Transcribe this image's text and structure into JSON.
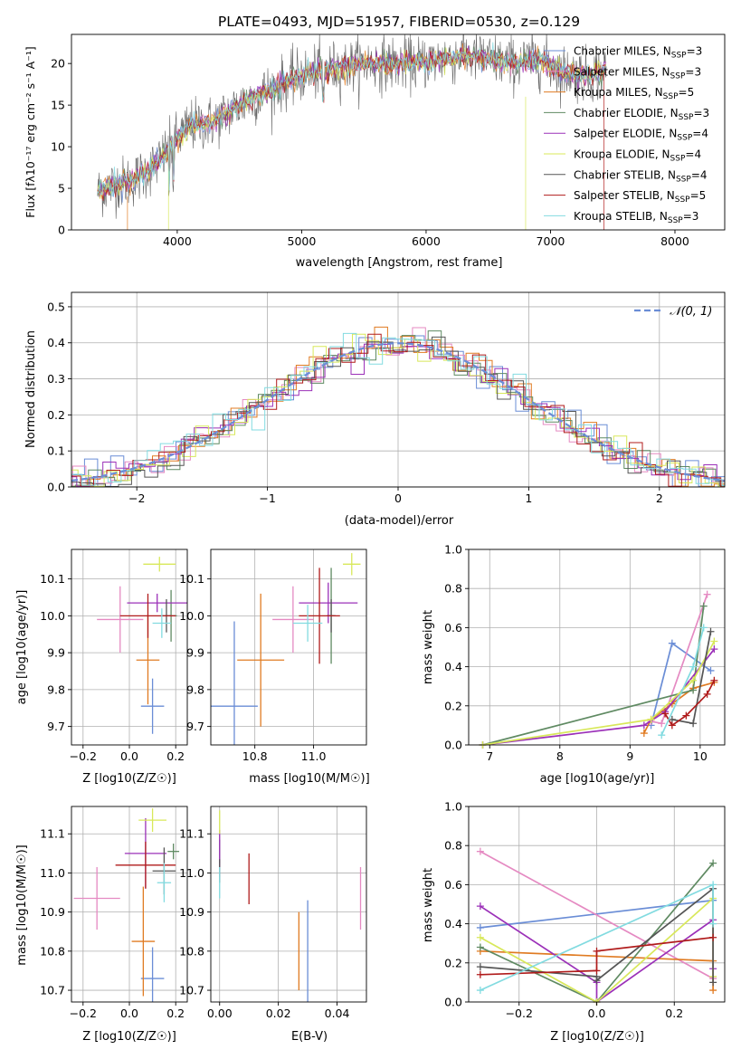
{
  "chart_data": [
    {
      "id": "spectrum",
      "type": "line",
      "title": "PLATE=0493, MJD=51957, FIBERID=0530, z=0.129",
      "xlabel": "wavelength [Angstrom, rest frame]",
      "ylabel": "Flux [fλ10⁻¹⁷ erg cm⁻² s⁻¹ A⁻¹]",
      "xlim": [
        3150,
        8400
      ],
      "ylim": [
        0,
        23.5
      ],
      "xticks": [
        4000,
        5000,
        6000,
        7000,
        8000
      ],
      "yticks": [
        0,
        5,
        10,
        15,
        20
      ],
      "grid": false,
      "legend_position": "upper right",
      "continuum": {
        "x": [
          3350,
          3500,
          3650,
          3800,
          3900,
          4000,
          4100,
          4300,
          4500,
          4700,
          4900,
          5100,
          5300,
          5500,
          5700,
          5900,
          6100,
          6300,
          6500,
          6700,
          6900,
          7100,
          7300,
          7500,
          7700,
          7900,
          8100
        ],
        "y": [
          4.5,
          5.5,
          6.0,
          7.5,
          9.0,
          11.0,
          12.5,
          13.0,
          15.0,
          16.5,
          18.0,
          19.0,
          19.5,
          20.0,
          20.0,
          20.0,
          20.5,
          21.0,
          20.5,
          20.0,
          20.5,
          19.0,
          18.5,
          19.5,
          18.0,
          18.5,
          19.0
        ]
      },
      "series": [
        {
          "name": "Chabrier MILES, N_SSP=3",
          "label_base": "Chabrier MILES, N",
          "label_sub": "SSP",
          "label_tail": "=3",
          "color": "#6a8dd6"
        },
        {
          "name": "Salpeter MILES, N_SSP=3",
          "label_base": "Salpeter MILES, N",
          "label_sub": "SSP",
          "label_tail": "=3",
          "color": "#e58ac2"
        },
        {
          "name": "Kroupa MILES, N_SSP=5",
          "label_base": "Kroupa MILES, N",
          "label_sub": "SSP",
          "label_tail": "=5",
          "color": "#e07b22"
        },
        {
          "name": "Chabrier ELODIE, N_SSP=3",
          "label_base": "Chabrier ELODIE, N",
          "label_sub": "SSP",
          "label_tail": "=3",
          "color": "#5f8a62"
        },
        {
          "name": "Salpeter ELODIE, N_SSP=4",
          "label_base": "Salpeter ELODIE, N",
          "label_sub": "SSP",
          "label_tail": "=4",
          "color": "#9b30b8"
        },
        {
          "name": "Kroupa ELODIE, N_SSP=4",
          "label_base": "Kroupa ELODIE, N",
          "label_sub": "SSP",
          "label_tail": "=4",
          "color": "#d8e85a"
        },
        {
          "name": "Chabrier STELIB, N_SSP=4",
          "label_base": "Chabrier STELIB, N",
          "label_sub": "SSP",
          "label_tail": "=4",
          "color": "#555555"
        },
        {
          "name": "Salpeter STELIB, N_SSP=5",
          "label_base": "Salpeter STELIB, N",
          "label_sub": "SSP",
          "label_tail": "=5",
          "color": "#b01b1b"
        },
        {
          "name": "Kroupa STELIB, N_SSP=3",
          "label_base": "Kroupa STELIB, N",
          "label_sub": "SSP",
          "label_tail": "=3",
          "color": "#82dbe0"
        }
      ]
    },
    {
      "id": "residuals",
      "type": "step-histogram",
      "xlabel": "(data-model)/error",
      "ylabel": "Normed distribution",
      "xlim": [
        -2.5,
        2.5
      ],
      "ylim": [
        0,
        0.54
      ],
      "xticks": [
        -2,
        -1,
        0,
        1,
        2
      ],
      "yticks": [
        0.0,
        0.1,
        0.2,
        0.3,
        0.4,
        0.5
      ],
      "grid": true,
      "bin_width": 0.1,
      "reference": {
        "name": "N(0,1)",
        "label": "𝒩(0, 1)",
        "style": "dashed",
        "color": "#6a8dd6",
        "mu": 0,
        "sigma": 1
      },
      "series_colors": [
        "#6a8dd6",
        "#e58ac2",
        "#e07b22",
        "#5f8a62",
        "#9b30b8",
        "#d8e85a",
        "#555555",
        "#b01b1b",
        "#82dbe0"
      ]
    },
    {
      "id": "age-vs-Z",
      "type": "errorbar",
      "xlabel": "Z [log10(Z/Z☉)]",
      "ylabel": "age [log10(age/yr)]",
      "xlim": [
        -0.25,
        0.25
      ],
      "ylim": [
        9.65,
        10.18
      ],
      "xticks": [
        -0.2,
        0.0,
        0.2
      ],
      "yticks": [
        9.7,
        9.8,
        9.9,
        10.0,
        10.1
      ],
      "grid": true,
      "points": [
        {
          "x": 0.1,
          "xerr": 0.05,
          "y": 9.755,
          "yerr": 0.075,
          "color": "#6a8dd6"
        },
        {
          "x": -0.04,
          "xerr": 0.1,
          "y": 9.99,
          "yerr": 0.09,
          "color": "#e58ac2"
        },
        {
          "x": 0.08,
          "xerr": 0.05,
          "y": 9.88,
          "yerr": 0.12,
          "color": "#e07b22"
        },
        {
          "x": 0.18,
          "xerr": 0.025,
          "y": 10.0,
          "yerr": 0.07,
          "color": "#5f8a62"
        },
        {
          "x": 0.12,
          "xerr": 0.13,
          "y": 10.035,
          "yerr": 0.025,
          "color": "#9b30b8"
        },
        {
          "x": 0.13,
          "xerr": 0.07,
          "y": 10.14,
          "yerr": 0.02,
          "color": "#d8e85a"
        },
        {
          "x": 0.16,
          "xerr": 0.02,
          "y": 10.0,
          "yerr": 0.045,
          "color": "#555555"
        },
        {
          "x": 0.08,
          "xerr": 0.12,
          "y": 10.0,
          "yerr": 0.06,
          "color": "#b01b1b"
        },
        {
          "x": 0.14,
          "xerr": 0.04,
          "y": 9.98,
          "yerr": 0.04,
          "color": "#82dbe0"
        }
      ]
    },
    {
      "id": "age-vs-mass",
      "type": "errorbar",
      "xlabel": "mass [log10(M/M☉)]",
      "ylabel": "",
      "xlim": [
        10.65,
        11.18
      ],
      "ylim": [
        9.65,
        10.18
      ],
      "xticks": [
        10.8,
        11.0
      ],
      "yticks": [
        9.7,
        9.8,
        9.9,
        10.0,
        10.1
      ],
      "grid": true,
      "points": [
        {
          "x": 10.73,
          "xerr": 0.08,
          "y": 9.755,
          "yerr": 0.23,
          "color": "#6a8dd6"
        },
        {
          "x": 10.93,
          "xerr": 0.07,
          "y": 9.99,
          "yerr": 0.09,
          "color": "#e58ac2"
        },
        {
          "x": 10.82,
          "xerr": 0.08,
          "y": 9.88,
          "yerr": 0.18,
          "color": "#e07b22"
        },
        {
          "x": 11.06,
          "xerr": 0.01,
          "y": 10.0,
          "yerr": 0.13,
          "color": "#5f8a62"
        },
        {
          "x": 11.05,
          "xerr": 0.1,
          "y": 10.035,
          "yerr": 0.055,
          "color": "#9b30b8"
        },
        {
          "x": 11.13,
          "xerr": 0.03,
          "y": 10.14,
          "yerr": 0.03,
          "color": "#d8e85a"
        },
        {
          "x": 11.06,
          "xerr": 0.015,
          "y": 10.0,
          "yerr": 0.045,
          "color": "#555555"
        },
        {
          "x": 11.02,
          "xerr": 0.07,
          "y": 10.0,
          "yerr": 0.13,
          "color": "#b01b1b"
        },
        {
          "x": 10.98,
          "xerr": 0.05,
          "y": 9.98,
          "yerr": 0.05,
          "color": "#82dbe0"
        }
      ]
    },
    {
      "id": "weight-vs-age",
      "type": "line",
      "xlabel": "age [log10(age/yr)]",
      "ylabel": "mass weight",
      "xlim": [
        6.7,
        10.35
      ],
      "ylim": [
        0,
        1.0
      ],
      "xticks": [
        7,
        8,
        9,
        10
      ],
      "yticks": [
        0.0,
        0.2,
        0.4,
        0.6,
        0.8,
        1.0
      ],
      "grid": true,
      "series": [
        {
          "color": "#6a8dd6",
          "x": [
            9.3,
            9.6,
            10.15
          ],
          "y": [
            0.1,
            0.52,
            0.38
          ]
        },
        {
          "color": "#e58ac2",
          "x": [
            9.3,
            9.45,
            10.1
          ],
          "y": [
            0.12,
            0.11,
            0.77
          ]
        },
        {
          "color": "#e07b22",
          "x": [
            9.2,
            9.3,
            9.6,
            9.9,
            10.2
          ],
          "y": [
            0.06,
            0.13,
            0.21,
            0.29,
            0.32
          ]
        },
        {
          "color": "#5f8a62",
          "x": [
            6.9,
            9.9,
            10.05
          ],
          "y": [
            0.0,
            0.28,
            0.71
          ]
        },
        {
          "color": "#9b30b8",
          "x": [
            6.9,
            9.2,
            9.5,
            10.2
          ],
          "y": [
            0.0,
            0.1,
            0.17,
            0.49
          ]
        },
        {
          "color": "#d8e85a",
          "x": [
            6.9,
            9.3,
            9.9,
            10.2
          ],
          "y": [
            0.0,
            0.13,
            0.33,
            0.53
          ]
        },
        {
          "color": "#555555",
          "x": [
            9.6,
            9.9,
            10.15
          ],
          "y": [
            0.13,
            0.11,
            0.58
          ]
        },
        {
          "color": "#b01b1b",
          "x": [
            9.5,
            9.6,
            9.8,
            10.1,
            10.2
          ],
          "y": [
            0.16,
            0.1,
            0.15,
            0.26,
            0.33
          ]
        },
        {
          "color": "#82dbe0",
          "x": [
            9.45,
            9.9,
            10.05
          ],
          "y": [
            0.05,
            0.4,
            0.6
          ]
        }
      ]
    },
    {
      "id": "mass-vs-Z",
      "type": "errorbar",
      "xlabel": "Z [log10(Z/Z☉)]",
      "ylabel": "mass [log10(M/M☉)]",
      "xlim": [
        -0.25,
        0.25
      ],
      "ylim": [
        10.67,
        11.17
      ],
      "xticks": [
        -0.2,
        0.0,
        0.2
      ],
      "yticks": [
        10.7,
        10.8,
        10.9,
        11.0,
        11.1
      ],
      "grid": true,
      "points": [
        {
          "x": 0.1,
          "xerr": 0.05,
          "y": 10.73,
          "yerr": 0.08,
          "color": "#6a8dd6"
        },
        {
          "x": -0.14,
          "xerr": 0.1,
          "y": 10.935,
          "yerr": 0.08,
          "color": "#e58ac2"
        },
        {
          "x": 0.06,
          "xerr": 0.05,
          "y": 10.825,
          "yerr": 0.14,
          "color": "#e07b22"
        },
        {
          "x": 0.19,
          "xerr": 0.025,
          "y": 11.055,
          "yerr": 0.02,
          "color": "#5f8a62"
        },
        {
          "x": 0.07,
          "xerr": 0.09,
          "y": 11.05,
          "yerr": 0.09,
          "color": "#9b30b8"
        },
        {
          "x": 0.1,
          "xerr": 0.06,
          "y": 11.135,
          "yerr": 0.03,
          "color": "#d8e85a"
        },
        {
          "x": 0.15,
          "xerr": 0.05,
          "y": 11.005,
          "yerr": 0.06,
          "color": "#555555"
        },
        {
          "x": 0.07,
          "xerr": 0.13,
          "y": 11.02,
          "yerr": 0.06,
          "color": "#b01b1b"
        },
        {
          "x": 0.15,
          "xerr": 0.03,
          "y": 10.975,
          "yerr": 0.05,
          "color": "#82dbe0"
        }
      ]
    },
    {
      "id": "mass-vs-ebv",
      "type": "errorbar",
      "xlabel": "E(B-V)",
      "ylabel": "",
      "xlim": [
        -0.003,
        0.05
      ],
      "ylim": [
        10.67,
        11.17
      ],
      "xticks": [
        0.0,
        0.02,
        0.04
      ],
      "yticks": [
        10.7,
        10.8,
        10.9,
        11.0,
        11.1
      ],
      "grid": true,
      "points": [
        {
          "x": 0.03,
          "xerr": 0,
          "y": 10.775,
          "yerr": 0.155,
          "color": "#6a8dd6"
        },
        {
          "x": 0.048,
          "xerr": 0,
          "y": 10.935,
          "yerr": 0.08,
          "color": "#e58ac2"
        },
        {
          "x": 0.027,
          "xerr": 0,
          "y": 10.8,
          "yerr": 0.1,
          "color": "#e07b22"
        },
        {
          "x": 0.0,
          "xerr": 0,
          "y": 11.055,
          "yerr": 0.03,
          "color": "#5f8a62"
        },
        {
          "x": 0.0,
          "xerr": 0,
          "y": 11.05,
          "yerr": 0.06,
          "color": "#9b30b8"
        },
        {
          "x": 0.0,
          "xerr": 0,
          "y": 11.13,
          "yerr": 0.03,
          "color": "#d8e85a"
        },
        {
          "x": 0.0,
          "xerr": 0,
          "y": 11.005,
          "yerr": 0.03,
          "color": "#555555"
        },
        {
          "x": 0.01,
          "xerr": 0,
          "y": 10.985,
          "yerr": 0.065,
          "color": "#b01b1b"
        },
        {
          "x": 0.0,
          "xerr": 0,
          "y": 10.975,
          "yerr": 0.04,
          "color": "#82dbe0"
        }
      ]
    },
    {
      "id": "weight-vs-Z",
      "type": "line",
      "xlabel": "Z [log10(Z/Z☉)]",
      "ylabel": "mass weight",
      "xlim": [
        -0.33,
        0.33
      ],
      "ylim": [
        0,
        1.0
      ],
      "xticks": [
        -0.2,
        0.0,
        0.2
      ],
      "yticks": [
        0.0,
        0.2,
        0.4,
        0.6,
        0.8,
        1.0
      ],
      "grid": true,
      "series": [
        {
          "color": "#6a8dd6",
          "x": [
            -0.3,
            0.3
          ],
          "y": [
            0.38,
            0.52
          ]
        },
        {
          "color": "#e58ac2",
          "x": [
            -0.3,
            0.3
          ],
          "y": [
            0.77,
            0.12
          ]
        },
        {
          "color": "#e07b22",
          "x": [
            -0.3,
            0.3,
            0.3
          ],
          "y": [
            0.26,
            0.21,
            0.06
          ]
        },
        {
          "color": "#5f8a62",
          "x": [
            -0.3,
            0.0,
            0.3
          ],
          "y": [
            0.28,
            0.0,
            0.71
          ]
        },
        {
          "color": "#9b30b8",
          "x": [
            -0.3,
            0.0,
            0.0,
            0.3,
            0.3
          ],
          "y": [
            0.49,
            0.1,
            0.0,
            0.42,
            0.17
          ]
        },
        {
          "color": "#d8e85a",
          "x": [
            -0.3,
            0.0,
            0.3,
            0.3
          ],
          "y": [
            0.33,
            0.0,
            0.53,
            0.13
          ]
        },
        {
          "color": "#555555",
          "x": [
            -0.3,
            0.0,
            0.0,
            0.3,
            0.3
          ],
          "y": [
            0.18,
            0.13,
            0.11,
            0.58,
            0.1
          ]
        },
        {
          "color": "#b01b1b",
          "x": [
            -0.3,
            0.0,
            0.0,
            0.3
          ],
          "y": [
            0.14,
            0.16,
            0.26,
            0.33
          ]
        },
        {
          "color": "#82dbe0",
          "x": [
            -0.3,
            0.3,
            0.3
          ],
          "y": [
            0.06,
            0.6,
            0.4
          ]
        }
      ]
    }
  ]
}
